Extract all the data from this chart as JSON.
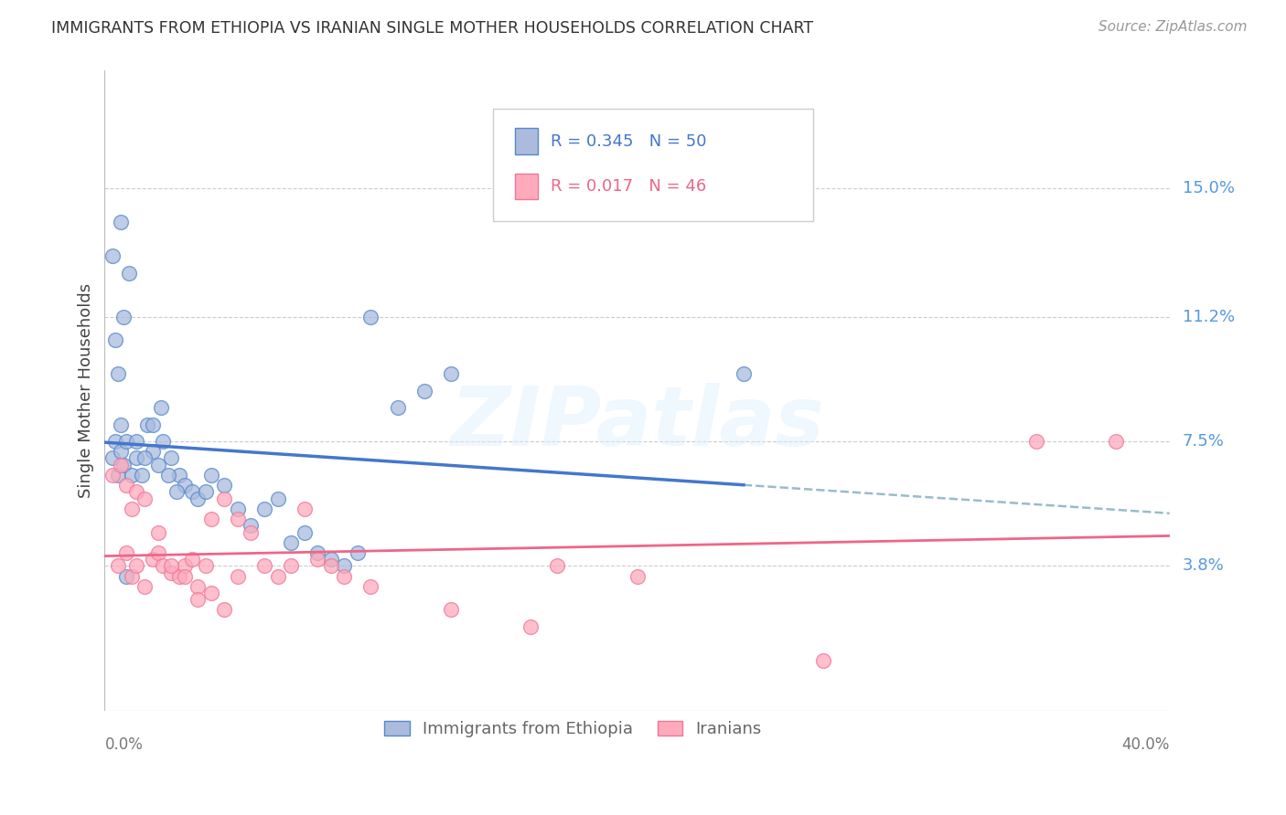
{
  "title": "IMMIGRANTS FROM ETHIOPIA VS IRANIAN SINGLE MOTHER HOUSEHOLDS CORRELATION CHART",
  "source": "Source: ZipAtlas.com",
  "ylabel": "Single Mother Households",
  "right_yticks": [
    "15.0%",
    "11.2%",
    "7.5%",
    "3.8%"
  ],
  "right_ytick_vals": [
    0.15,
    0.112,
    0.075,
    0.038
  ],
  "legend_label1": "Immigrants from Ethiopia",
  "legend_label2": "Iranians",
  "legend_r1": "R = 0.345",
  "legend_n1": "N = 50",
  "legend_r2": "R = 0.017",
  "legend_n2": "N = 46",
  "color_blue_fill": "#AABBDD",
  "color_blue_edge": "#5588CC",
  "color_pink_fill": "#FFAABB",
  "color_pink_edge": "#EE7799",
  "color_blue_line": "#4477CC",
  "color_pink_line": "#EE6688",
  "color_dashed": "#99BBCC",
  "xlim": [
    0.0,
    0.4
  ],
  "ylim": [
    -0.005,
    0.185
  ],
  "watermark_text": "ZIPatlas",
  "ethiopia_x": [
    0.004,
    0.007,
    0.005,
    0.006,
    0.003,
    0.005,
    0.006,
    0.007,
    0.008,
    0.01,
    0.012,
    0.014,
    0.016,
    0.018,
    0.02,
    0.022,
    0.025,
    0.028,
    0.03,
    0.033,
    0.035,
    0.038,
    0.04,
    0.045,
    0.05,
    0.055,
    0.06,
    0.065,
    0.07,
    0.075,
    0.08,
    0.085,
    0.09,
    0.095,
    0.1,
    0.11,
    0.12,
    0.13,
    0.24,
    0.003,
    0.006,
    0.009,
    0.012,
    0.015,
    0.004,
    0.021,
    0.018,
    0.024,
    0.027,
    0.008
  ],
  "ethiopia_y": [
    0.075,
    0.112,
    0.095,
    0.08,
    0.07,
    0.065,
    0.072,
    0.068,
    0.075,
    0.065,
    0.07,
    0.065,
    0.08,
    0.072,
    0.068,
    0.075,
    0.07,
    0.065,
    0.062,
    0.06,
    0.058,
    0.06,
    0.065,
    0.062,
    0.055,
    0.05,
    0.055,
    0.058,
    0.045,
    0.048,
    0.042,
    0.04,
    0.038,
    0.042,
    0.112,
    0.085,
    0.09,
    0.095,
    0.095,
    0.13,
    0.14,
    0.125,
    0.075,
    0.07,
    0.105,
    0.085,
    0.08,
    0.065,
    0.06,
    0.035
  ],
  "iranian_x": [
    0.005,
    0.008,
    0.01,
    0.012,
    0.015,
    0.018,
    0.02,
    0.022,
    0.025,
    0.028,
    0.03,
    0.033,
    0.035,
    0.038,
    0.04,
    0.045,
    0.05,
    0.055,
    0.06,
    0.065,
    0.003,
    0.006,
    0.008,
    0.01,
    0.012,
    0.015,
    0.02,
    0.025,
    0.03,
    0.035,
    0.04,
    0.045,
    0.05,
    0.27,
    0.35,
    0.38,
    0.07,
    0.075,
    0.08,
    0.085,
    0.09,
    0.1,
    0.13,
    0.17,
    0.2,
    0.16
  ],
  "iranian_y": [
    0.038,
    0.042,
    0.035,
    0.038,
    0.032,
    0.04,
    0.042,
    0.038,
    0.036,
    0.035,
    0.038,
    0.04,
    0.032,
    0.038,
    0.052,
    0.058,
    0.052,
    0.048,
    0.038,
    0.035,
    0.065,
    0.068,
    0.062,
    0.055,
    0.06,
    0.058,
    0.048,
    0.038,
    0.035,
    0.028,
    0.03,
    0.025,
    0.035,
    0.01,
    0.075,
    0.075,
    0.038,
    0.055,
    0.04,
    0.038,
    0.035,
    0.032,
    0.025,
    0.038,
    0.035,
    0.02
  ]
}
